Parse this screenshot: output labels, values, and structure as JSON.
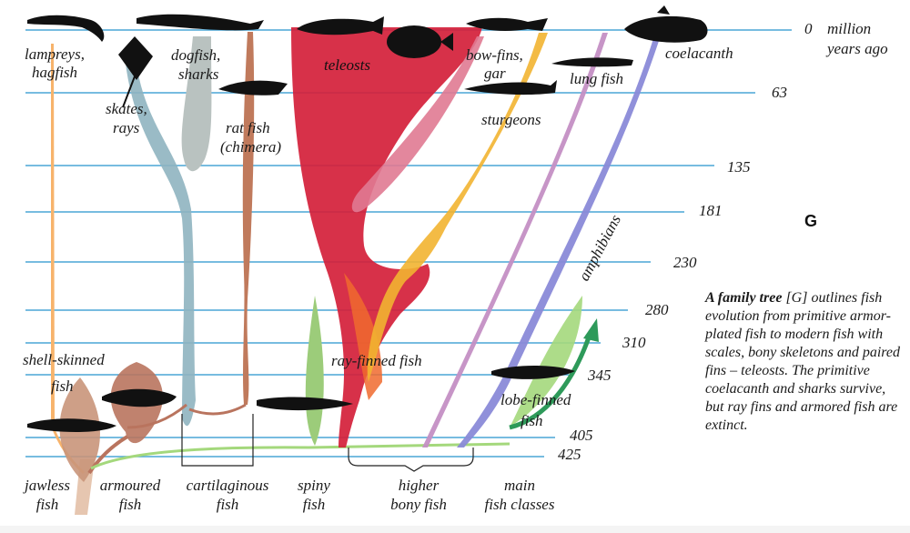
{
  "timescale": {
    "unit_top": "million",
    "unit_bottom": "years ago",
    "labels": [
      "0",
      "63",
      "135",
      "181",
      "230",
      "280",
      "310",
      "345",
      "405",
      "425"
    ]
  },
  "panel_letter": "G",
  "labels": {
    "lampreys": "lampreys,",
    "hagfish": "hagfish",
    "skates": "skates,",
    "rays": "rays",
    "dogfish": "dogfish,",
    "sharks": "sharks",
    "ratfish": "rat fish",
    "chimera": "(chimera)",
    "teleosts": "teleosts",
    "bowfins": "bow-fins,",
    "gar": "gar",
    "sturgeons": "sturgeons",
    "lungfish": "lung fish",
    "coelacanth": "coelacanth",
    "shellskinned": "shell-skinned",
    "shellskinned2": "fish",
    "rayfinned": "ray-finned fish",
    "lobefinned": "lobe-finned",
    "lobefinned2": "fish",
    "amphibians": "amphibians"
  },
  "groups": {
    "jawless_1": "jawless",
    "jawless_2": "fish",
    "armoured_1": "armoured",
    "armoured_2": "fish",
    "cartilaginous_1": "cartilaginous",
    "cartilaginous_2": "fish",
    "spiny_1": "spiny",
    "spiny_2": "fish",
    "higher_1": "higher",
    "higher_2": "bony fish",
    "main_1": "main",
    "main_2": "fish classes"
  },
  "caption": {
    "lead": "A family tree",
    "tag": "[G]",
    "body": "outlines fish evolution from primitive armor-plated fish to modern fish with scales, bony skeletons and paired fins – teleosts. The primitive coelacanth and sharks survive, but ray fins and armored fish are extinct."
  },
  "colors": {
    "time_line": "#4aa6d6",
    "jawless": "#f7b36b",
    "shell_skinned": "#c9957a",
    "armoured": "#b9745e",
    "skates_rays": "#8fb4c0",
    "dogfish_sharks": "#b9c2c0",
    "ratfish": "#c07a5c",
    "spiny": "#9ccc7a",
    "teleosts": "#d4203a",
    "bowfins": "#e07a92",
    "sturgeons": "#f2b431",
    "lungfish": "#c48fc4",
    "coelacanth": "#8a8ad8",
    "lobefinned": "#a4d87c",
    "amphibians": "#2e9a5a"
  },
  "icons": [
    "lamprey-icon",
    "ray-icon",
    "dogfish-icon",
    "ratfish-icon",
    "teleost-icon",
    "flatfish-icon",
    "bowfin-icon",
    "sturgeon-icon",
    "lungfish-icon",
    "coelacanth-icon",
    "armoured-fish-icon",
    "jawless-fossil-icon",
    "spiny-fish-icon",
    "lobefin-fish-icon"
  ]
}
